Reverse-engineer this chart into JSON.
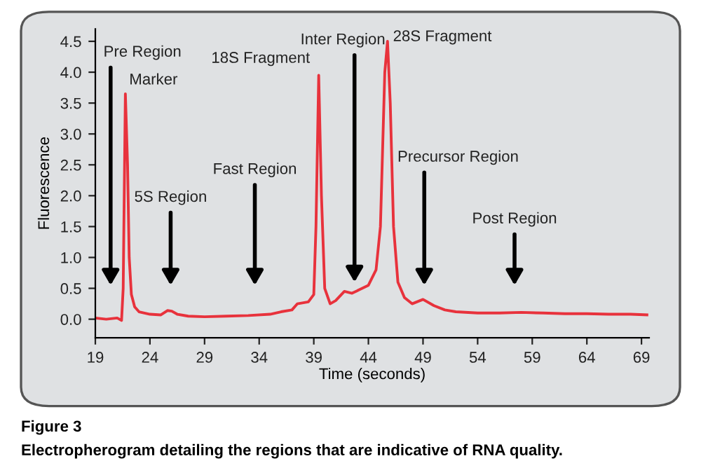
{
  "chart_data": {
    "type": "line",
    "xlabel": "Time (seconds)",
    "ylabel": "Fluorescence",
    "color": "#e8323c",
    "x": [
      19,
      20,
      21,
      21.4,
      21.55,
      21.75,
      21.95,
      22.1,
      22.3,
      22.6,
      23,
      24,
      25,
      25.6,
      26,
      26.5,
      27.5,
      29,
      31,
      33,
      35,
      36,
      37,
      37.5,
      38.5,
      39.0,
      39.2,
      39.45,
      39.7,
      40.0,
      40.5,
      41,
      41.8,
      42.5,
      43.2,
      44,
      44.7,
      45.1,
      45.5,
      45.75,
      46.0,
      46.3,
      46.7,
      47.3,
      48,
      49,
      50,
      51,
      52,
      54,
      56,
      58,
      60,
      62,
      64,
      66,
      68,
      69.5
    ],
    "values": [
      0.02,
      0.0,
      0.02,
      -0.02,
      0.5,
      3.65,
      2.5,
      1.0,
      0.4,
      0.2,
      0.12,
      0.08,
      0.07,
      0.14,
      0.13,
      0.08,
      0.05,
      0.04,
      0.05,
      0.06,
      0.08,
      0.12,
      0.15,
      0.25,
      0.28,
      0.4,
      1.5,
      3.95,
      2.0,
      0.5,
      0.25,
      0.3,
      0.45,
      0.42,
      0.48,
      0.55,
      0.8,
      1.5,
      4.0,
      4.5,
      3.5,
      1.5,
      0.6,
      0.35,
      0.25,
      0.32,
      0.22,
      0.15,
      0.12,
      0.1,
      0.1,
      0.11,
      0.1,
      0.09,
      0.09,
      0.08,
      0.08,
      0.07
    ],
    "xlim": [
      19,
      69.7
    ],
    "ylim": [
      -0.3,
      4.7
    ],
    "xticks": [
      19,
      24,
      29,
      34,
      39,
      44,
      49,
      54,
      59,
      64,
      69
    ],
    "yticks": [
      {
        "value": 0,
        "label": "0.0"
      },
      0.5,
      {
        "value": 1,
        "label": "1.0"
      },
      1.5,
      {
        "value": 2,
        "label": "2.0"
      },
      2.5,
      {
        "value": 3,
        "label": "3.0"
      },
      3.5,
      {
        "value": 4,
        "label": "4.0"
      },
      4.5
    ],
    "grid": false,
    "legend": false,
    "marker": "none",
    "line_style": "solid",
    "annotations": [
      "Pre Region",
      {
        "text": "Marker",
        "x": 21.75,
        "y": 3.65
      },
      "5S Region",
      "Fast Region",
      {
        "text": "18S Fragment",
        "x": 39.45,
        "y": 3.95
      },
      "Inter Region",
      {
        "text": "28S Fragment",
        "x": 45.75,
        "y": 4.5
      },
      "Precursor Region",
      "Post Region",
      "Figure 3",
      "Electropherogram detailing the regions that are indicative of RNA quality."
    ]
  }
}
